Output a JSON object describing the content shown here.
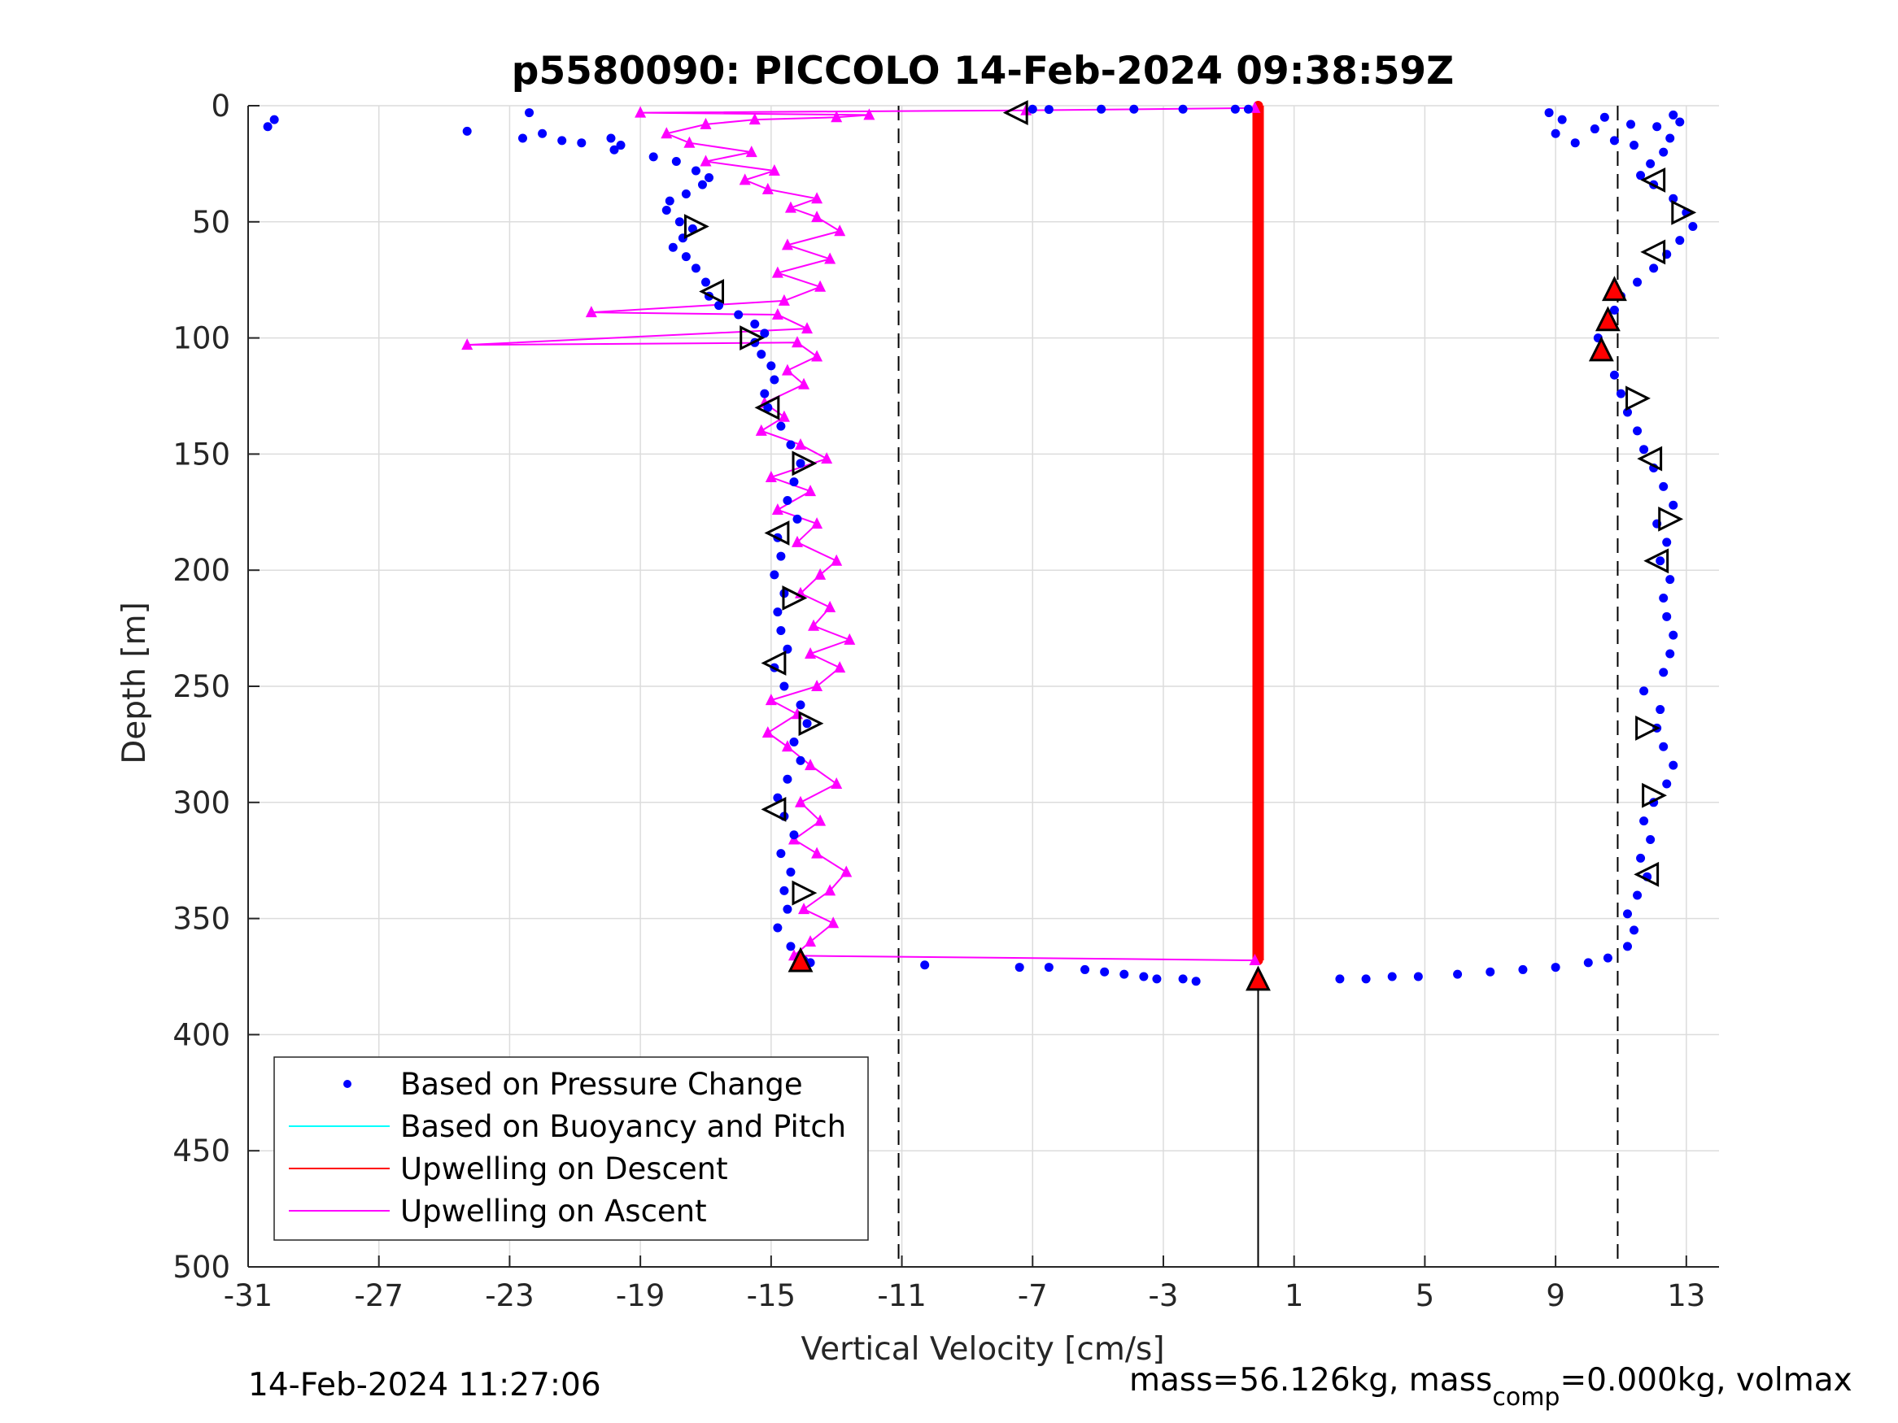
{
  "chart_data": {
    "type": "scatter",
    "title": "p5580090: PICCOLO 14-Feb-2024 09:38:59Z",
    "xlabel": "Vertical Velocity [cm/s]",
    "ylabel": "Depth [m]",
    "xlim": [
      -31,
      14
    ],
    "ylim": [
      0,
      500
    ],
    "y_reversed": true,
    "xticks": [
      -31,
      -27,
      -23,
      -19,
      -15,
      -11,
      -7,
      -3,
      1,
      5,
      9,
      13
    ],
    "yticks": [
      0,
      50,
      100,
      150,
      200,
      250,
      300,
      350,
      400,
      450,
      500
    ],
    "grid": true,
    "legend_position": "bottom-left",
    "vertical_dashed_lines": [
      -11.1,
      10.9
    ],
    "colors": {
      "pressure": "#0000ff",
      "buoyancy": "#00ffff",
      "descent": "#ff0000",
      "ascent": "#ff00ff",
      "markers": "#000000"
    },
    "series": [
      {
        "name": "Based on Pressure Change",
        "style": "dots",
        "points": [
          [
            -30.2,
            6
          ],
          [
            -30.4,
            9
          ],
          [
            -22.4,
            3
          ],
          [
            -24.3,
            11
          ],
          [
            -22.6,
            14
          ],
          [
            -22.0,
            12
          ],
          [
            -21.4,
            15
          ],
          [
            -20.8,
            16
          ],
          [
            -19.9,
            14
          ],
          [
            -19.6,
            17
          ],
          [
            -19.8,
            19
          ],
          [
            -18.6,
            22
          ],
          [
            -17.9,
            24
          ],
          [
            -17.3,
            28
          ],
          [
            -16.9,
            31
          ],
          [
            -17.1,
            34
          ],
          [
            -17.6,
            38
          ],
          [
            -18.1,
            41
          ],
          [
            -18.2,
            45
          ],
          [
            -17.8,
            50
          ],
          [
            -17.4,
            53
          ],
          [
            -17.7,
            57
          ],
          [
            -18.0,
            61
          ],
          [
            -17.6,
            65
          ],
          [
            -17.3,
            70
          ],
          [
            -17.0,
            76
          ],
          [
            -16.9,
            82
          ],
          [
            -16.6,
            86
          ],
          [
            -16.0,
            90
          ],
          [
            -15.5,
            94
          ],
          [
            -15.2,
            98
          ],
          [
            -15.5,
            102
          ],
          [
            -15.3,
            107
          ],
          [
            -15.0,
            112
          ],
          [
            -14.9,
            118
          ],
          [
            -15.2,
            124
          ],
          [
            -15.1,
            130
          ],
          [
            -14.7,
            138
          ],
          [
            -14.4,
            146
          ],
          [
            -14.1,
            154
          ],
          [
            -14.3,
            162
          ],
          [
            -14.5,
            170
          ],
          [
            -14.2,
            178
          ],
          [
            -14.8,
            186
          ],
          [
            -14.7,
            194
          ],
          [
            -14.9,
            202
          ],
          [
            -14.6,
            210
          ],
          [
            -14.8,
            218
          ],
          [
            -14.7,
            226
          ],
          [
            -14.5,
            234
          ],
          [
            -14.9,
            242
          ],
          [
            -14.6,
            250
          ],
          [
            -14.1,
            258
          ],
          [
            -13.9,
            266
          ],
          [
            -14.3,
            274
          ],
          [
            -14.1,
            282
          ],
          [
            -14.5,
            290
          ],
          [
            -14.8,
            298
          ],
          [
            -14.6,
            306
          ],
          [
            -14.3,
            314
          ],
          [
            -14.7,
            322
          ],
          [
            -14.4,
            330
          ],
          [
            -14.6,
            338
          ],
          [
            -14.5,
            346
          ],
          [
            -14.8,
            354
          ],
          [
            -14.4,
            362
          ],
          [
            -14.0,
            368
          ],
          [
            -13.8,
            369
          ],
          [
            -10.3,
            370
          ],
          [
            -7.4,
            371
          ],
          [
            -6.5,
            371
          ],
          [
            -5.4,
            372
          ],
          [
            -4.8,
            373
          ],
          [
            -4.2,
            374
          ],
          [
            -3.6,
            375
          ],
          [
            -3.2,
            376
          ],
          [
            -2.4,
            376
          ],
          [
            -2.0,
            377
          ],
          [
            -7.0,
            1.5
          ],
          [
            -6.5,
            1.6
          ],
          [
            -4.9,
            1.5
          ],
          [
            -3.9,
            1.5
          ],
          [
            -2.4,
            1.5
          ],
          [
            -0.8,
            1.5
          ],
          [
            -0.4,
            1.5
          ],
          [
            2.4,
            376
          ],
          [
            3.2,
            376
          ],
          [
            4.0,
            375
          ],
          [
            4.8,
            375
          ],
          [
            6.0,
            374
          ],
          [
            7.0,
            373
          ],
          [
            8.0,
            372
          ],
          [
            9.0,
            371
          ],
          [
            10.0,
            369
          ],
          [
            10.6,
            367
          ],
          [
            11.2,
            362
          ],
          [
            11.4,
            355
          ],
          [
            11.2,
            348
          ],
          [
            11.5,
            340
          ],
          [
            11.8,
            332
          ],
          [
            11.6,
            324
          ],
          [
            11.9,
            316
          ],
          [
            11.7,
            308
          ],
          [
            12.0,
            300
          ],
          [
            12.4,
            292
          ],
          [
            12.6,
            284
          ],
          [
            12.3,
            276
          ],
          [
            12.1,
            268
          ],
          [
            12.2,
            260
          ],
          [
            11.7,
            252
          ],
          [
            12.3,
            244
          ],
          [
            12.5,
            236
          ],
          [
            12.6,
            228
          ],
          [
            12.4,
            220
          ],
          [
            12.3,
            212
          ],
          [
            12.5,
            204
          ],
          [
            12.2,
            196
          ],
          [
            12.4,
            188
          ],
          [
            12.1,
            180
          ],
          [
            12.6,
            172
          ],
          [
            12.3,
            164
          ],
          [
            12.0,
            156
          ],
          [
            11.7,
            148
          ],
          [
            11.5,
            140
          ],
          [
            11.2,
            132
          ],
          [
            11.0,
            124
          ],
          [
            10.8,
            116
          ],
          [
            10.5,
            108
          ],
          [
            10.3,
            100
          ],
          [
            10.5,
            94
          ],
          [
            10.8,
            88
          ],
          [
            11.0,
            82
          ],
          [
            11.5,
            76
          ],
          [
            12.0,
            70
          ],
          [
            12.4,
            64
          ],
          [
            12.8,
            58
          ],
          [
            13.2,
            52
          ],
          [
            13.0,
            46
          ],
          [
            12.6,
            40
          ],
          [
            12.0,
            34
          ],
          [
            11.6,
            30
          ],
          [
            11.9,
            25
          ],
          [
            12.3,
            20
          ],
          [
            12.5,
            14
          ],
          [
            11.4,
            17
          ],
          [
            9.0,
            12
          ],
          [
            9.6,
            16
          ],
          [
            10.2,
            10
          ],
          [
            10.8,
            15
          ],
          [
            11.3,
            8
          ],
          [
            12.1,
            9
          ],
          [
            12.6,
            4
          ],
          [
            9.2,
            6
          ],
          [
            10.5,
            5
          ],
          [
            8.8,
            3
          ],
          [
            12.8,
            7
          ]
        ]
      },
      {
        "name": "Based on Buoyancy and Pitch",
        "style": "line",
        "points": []
      },
      {
        "name": "Upwelling on Descent",
        "style": "line-markers",
        "points": [
          [
            -0.1,
            0
          ],
          [
            -0.1,
            25
          ],
          [
            -0.1,
            50
          ],
          [
            -0.1,
            75
          ],
          [
            -0.1,
            100
          ],
          [
            -0.1,
            125
          ],
          [
            -0.1,
            150
          ],
          [
            -0.1,
            175
          ],
          [
            -0.1,
            200
          ],
          [
            -0.1,
            225
          ],
          [
            -0.1,
            250
          ],
          [
            -0.1,
            275
          ],
          [
            -0.1,
            300
          ],
          [
            -0.1,
            325
          ],
          [
            -0.1,
            350
          ],
          [
            -0.1,
            368
          ]
        ]
      },
      {
        "name": "Upwelling on Ascent",
        "style": "line-markers",
        "points": [
          [
            -0.2,
            368
          ],
          [
            -14.3,
            366
          ],
          [
            -13.8,
            360
          ],
          [
            -13.1,
            352
          ],
          [
            -14.0,
            346
          ],
          [
            -13.2,
            338
          ],
          [
            -12.7,
            330
          ],
          [
            -13.6,
            322
          ],
          [
            -14.3,
            316
          ],
          [
            -13.5,
            308
          ],
          [
            -14.1,
            300
          ],
          [
            -13.0,
            292
          ],
          [
            -13.8,
            284
          ],
          [
            -14.5,
            276
          ],
          [
            -15.1,
            270
          ],
          [
            -14.2,
            262
          ],
          [
            -15.0,
            256
          ],
          [
            -13.6,
            250
          ],
          [
            -12.9,
            242
          ],
          [
            -13.8,
            236
          ],
          [
            -12.6,
            230
          ],
          [
            -13.7,
            224
          ],
          [
            -13.2,
            216
          ],
          [
            -14.1,
            210
          ],
          [
            -13.5,
            202
          ],
          [
            -13.0,
            196
          ],
          [
            -14.2,
            188
          ],
          [
            -13.6,
            180
          ],
          [
            -14.8,
            174
          ],
          [
            -13.8,
            166
          ],
          [
            -15.0,
            160
          ],
          [
            -13.3,
            152
          ],
          [
            -14.1,
            146
          ],
          [
            -15.3,
            140
          ],
          [
            -14.6,
            134
          ],
          [
            -15.2,
            128
          ],
          [
            -14.0,
            120
          ],
          [
            -14.5,
            114
          ],
          [
            -13.6,
            108
          ],
          [
            -14.2,
            102
          ],
          [
            -24.3,
            103
          ],
          [
            -13.9,
            96
          ],
          [
            -14.8,
            90
          ],
          [
            -20.5,
            89
          ],
          [
            -14.6,
            84
          ],
          [
            -13.5,
            78
          ],
          [
            -14.8,
            72
          ],
          [
            -13.2,
            66
          ],
          [
            -14.5,
            60
          ],
          [
            -12.9,
            54
          ],
          [
            -13.6,
            48
          ],
          [
            -14.4,
            44
          ],
          [
            -13.6,
            40
          ],
          [
            -15.1,
            36
          ],
          [
            -15.8,
            32
          ],
          [
            -14.9,
            28
          ],
          [
            -17.0,
            24
          ],
          [
            -15.6,
            20
          ],
          [
            -17.5,
            16
          ],
          [
            -18.2,
            12
          ],
          [
            -17.0,
            8
          ],
          [
            -15.5,
            6
          ],
          [
            -13.0,
            5
          ],
          [
            -12.0,
            4
          ],
          [
            -19.0,
            3
          ],
          [
            -7.2,
            2
          ],
          [
            -0.2,
            1
          ]
        ]
      }
    ],
    "markers": [
      {
        "symbol": "triangle-left",
        "points": [
          [
            -7.5,
            3
          ],
          [
            -16.8,
            80
          ],
          [
            -15.1,
            130
          ],
          [
            -14.8,
            184
          ],
          [
            -14.9,
            240
          ],
          [
            -14.9,
            303
          ],
          [
            12.0,
            32
          ],
          [
            12.0,
            63
          ],
          [
            11.9,
            152
          ],
          [
            12.1,
            196
          ],
          [
            11.8,
            331
          ]
        ]
      },
      {
        "symbol": "triangle-right",
        "points": [
          [
            -17.3,
            52
          ],
          [
            -15.6,
            100
          ],
          [
            -14.0,
            154
          ],
          [
            -14.3,
            212
          ],
          [
            -13.8,
            266
          ],
          [
            -14.0,
            339
          ],
          [
            12.9,
            46
          ],
          [
            11.5,
            126
          ],
          [
            12.5,
            178
          ],
          [
            11.8,
            268
          ],
          [
            12.0,
            297
          ]
        ]
      },
      {
        "symbol": "filled-triangle-up-red",
        "points": [
          [
            -14.1,
            368
          ],
          [
            -0.1,
            376
          ],
          [
            10.8,
            79
          ],
          [
            10.6,
            92
          ],
          [
            10.4,
            105
          ]
        ]
      }
    ],
    "vertical_line": {
      "x": -0.1,
      "from": 376,
      "to": 500
    }
  },
  "footer": {
    "timestamp": "14-Feb-2024 11:27:06",
    "mass_text": "mass=56.126kg, mass",
    "mass_sub": "comp",
    "mass_rest": "=0.000kg, volmax"
  }
}
